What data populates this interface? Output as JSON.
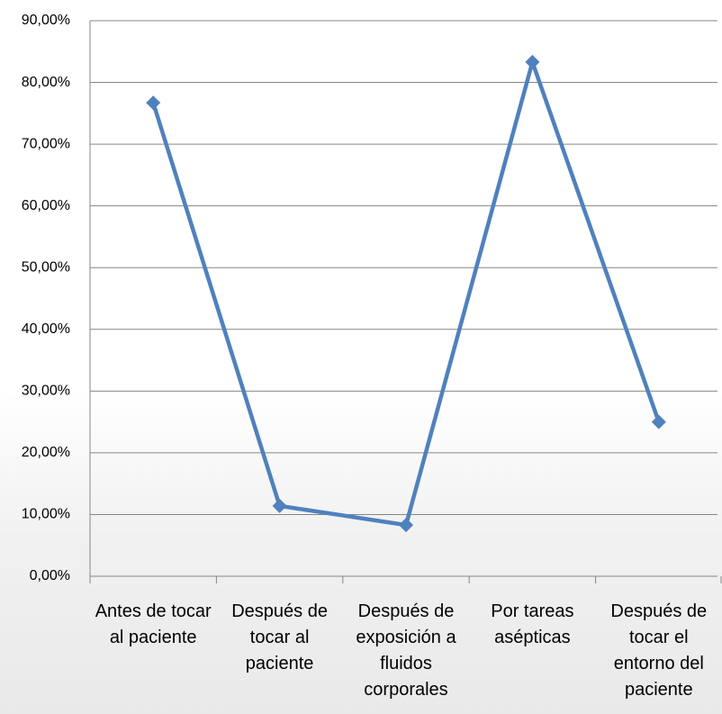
{
  "chart_data": {
    "type": "line",
    "categories": [
      "Antes de tocar al paciente",
      "Después de tocar al paciente",
      "Después de exposición a fluidos corporales",
      "Por tareas asépticas",
      "Después de tocar el entorno del paciente"
    ],
    "series": [
      {
        "name": null,
        "color": "#4f81bd",
        "values": [
          76.7,
          11.4,
          8.3,
          83.3,
          25.0
        ]
      }
    ],
    "ylim": [
      0,
      90
    ],
    "yticks": [
      {
        "value": 0,
        "label": "0,00%"
      },
      {
        "value": 10,
        "label": "10,00%"
      },
      {
        "value": 20,
        "label": "20,00%"
      },
      {
        "value": 30,
        "label": "30,00%"
      },
      {
        "value": 40,
        "label": "40,00%"
      },
      {
        "value": 50,
        "label": "50,00%"
      },
      {
        "value": 60,
        "label": "60,00%"
      },
      {
        "value": 70,
        "label": "70,00%"
      },
      {
        "value": 80,
        "label": "80,00%"
      },
      {
        "value": 90,
        "label": "90,00%"
      }
    ],
    "grid": true
  }
}
